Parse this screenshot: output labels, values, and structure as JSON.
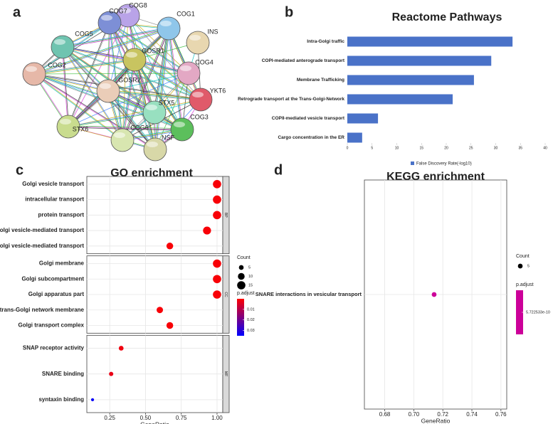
{
  "chart_data": [
    {
      "type": "network",
      "label": "a",
      "nodes": [
        {
          "label": "COG8",
          "color": "#b9a3e8"
        },
        {
          "label": "COG7",
          "color": "#7d8fd6"
        },
        {
          "label": "COG1",
          "color": "#8fc6ea"
        },
        {
          "label": "INS",
          "color": "#e8d7b0"
        },
        {
          "label": "COG5",
          "color": "#6fc4b0"
        },
        {
          "label": "GOSR1",
          "color": "#c8c460"
        },
        {
          "label": "COG4",
          "color": "#e3a8c4"
        },
        {
          "label": "COG2",
          "color": "#e6b8a8"
        },
        {
          "label": "GOSR2",
          "color": "#eacdb8"
        },
        {
          "label": "YKT6",
          "color": "#e05a6a"
        },
        {
          "label": "STX5",
          "color": "#98e0c0"
        },
        {
          "label": "COG3",
          "color": "#5cbf5c"
        },
        {
          "label": "STX6",
          "color": "#c9dc8e"
        },
        {
          "label": "COG6",
          "color": "#d8e6b0"
        },
        {
          "label": "NSF",
          "color": "#d8d8a8"
        }
      ]
    },
    {
      "type": "bar",
      "label": "b",
      "title": "Reactome Pathways",
      "categories": [
        "Intra-Golgi traffic",
        "COPI-mediated anterograde transport",
        "Membrane Trafficking",
        "Retrograde transport at the Trans-Golgi-Network",
        "COPII-mediated vesicle transport",
        "Cargo concentration in the ER"
      ],
      "values": [
        33.4,
        29.1,
        25.6,
        21.3,
        6.2,
        3.0
      ],
      "color": "#4a72c8",
      "xlim": [
        0,
        40
      ],
      "xticks": [
        0,
        5,
        10,
        15,
        20,
        25,
        30,
        35,
        40
      ],
      "legend": "False Discovery Rate(-log10)"
    },
    {
      "type": "dot",
      "label": "c",
      "title": "GO enrichment",
      "xlabel": "GeneRatio",
      "xlim": [
        0.09,
        1.04
      ],
      "xticks": [
        0.25,
        {
          "value": 0.5,
          "label": "0.50"
        },
        0.75,
        {
          "value": 1,
          "label": "1.00"
        }
      ],
      "size_legend_title": "Count",
      "size_ticks": [
        5,
        10,
        15
      ],
      "color_legend_title": "p.adjust",
      "color_lim": [
        0,
        0.035
      ],
      "color_ticks": [
        0.01,
        0.02,
        0.03
      ],
      "colors": [
        "#ff0000",
        "#0000ff"
      ],
      "facets": [
        {
          "name": "BP",
          "categories": [
            "Golgi vesicle transport",
            "intracellular transport",
            "protein transport",
            "ER to Golgi vesicle-mediated transport",
            "intra-Golgi vesicle-mediated transport"
          ],
          "x": [
            1.0,
            1.0,
            1.0,
            0.93,
            0.67
          ],
          "count": [
            15,
            15,
            15,
            14,
            10
          ],
          "p_adjust": [
            0.001,
            0.001,
            0.001,
            0.001,
            0.001
          ]
        },
        {
          "name": "CC",
          "categories": [
            "Golgi membrane",
            "Golgi subcompartment",
            "Golgi apparatus part",
            "trans-Golgi network membrane",
            "Golgi transport complex"
          ],
          "x": [
            1.0,
            1.0,
            1.0,
            0.6,
            0.67
          ],
          "count": [
            15,
            15,
            15,
            9,
            10
          ],
          "p_adjust": [
            0.001,
            0.001,
            0.001,
            0.001,
            0.001
          ]
        },
        {
          "name": "MF",
          "categories": [
            "SNAP receptor activity",
            "SNARE binding",
            "syntaxin binding"
          ],
          "x": [
            0.33,
            0.26,
            0.13
          ],
          "count": [
            5,
            4,
            2
          ],
          "p_adjust": [
            0.002,
            0.003,
            0.034
          ]
        }
      ]
    },
    {
      "type": "dot",
      "label": "d",
      "title": "KEGG enrichment",
      "xlabel": "GeneRatio",
      "xlim": [
        0.666,
        0.764
      ],
      "xticks": [
        0.68,
        {
          "value": 0.7,
          "label": "0.70"
        },
        0.72,
        0.74,
        0.76
      ],
      "size_legend_title": "Count",
      "size_ticks": [
        5
      ],
      "color_legend_title": "p.adjust",
      "color_lim": [
        5.722533e-10,
        5.722533e-10
      ],
      "color_ticks": [
        5.722533e-10
      ],
      "colors": [
        "#cc0099"
      ],
      "facets": [
        {
          "categories": [
            "SNARE interactions in vesicular transport"
          ],
          "x": [
            0.714
          ],
          "count": [
            5
          ],
          "p_adjust": [
            5.722533e-10
          ]
        }
      ]
    }
  ]
}
